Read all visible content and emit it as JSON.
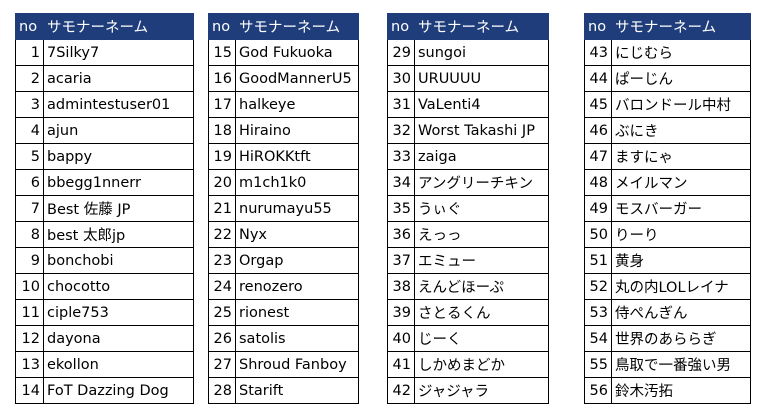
{
  "header": {
    "no": "no",
    "name": "サモナーネーム"
  },
  "colors": {
    "header_bg": "#1f3d7a",
    "header_text": "#ffffff",
    "border": "#000000"
  },
  "tables": [
    {
      "rows": [
        {
          "no": "1",
          "name": "7Silky7"
        },
        {
          "no": "2",
          "name": "acaria"
        },
        {
          "no": "3",
          "name": "admintestuser01"
        },
        {
          "no": "4",
          "name": "ajun"
        },
        {
          "no": "5",
          "name": "bappy"
        },
        {
          "no": "6",
          "name": "bbegg1nnerr"
        },
        {
          "no": "7",
          "name": "Best 佐藤 JP"
        },
        {
          "no": "8",
          "name": "best 太郎jp"
        },
        {
          "no": "9",
          "name": "bonchobi"
        },
        {
          "no": "10",
          "name": "chocotto"
        },
        {
          "no": "11",
          "name": "ciple753"
        },
        {
          "no": "12",
          "name": "dayona"
        },
        {
          "no": "13",
          "name": "ekollon"
        },
        {
          "no": "14",
          "name": "FoT Dazzing Dog"
        }
      ]
    },
    {
      "rows": [
        {
          "no": "15",
          "name": "God Fukuoka"
        },
        {
          "no": "16",
          "name": "GoodMannerU5"
        },
        {
          "no": "17",
          "name": "halkeye"
        },
        {
          "no": "18",
          "name": "Hiraino"
        },
        {
          "no": "19",
          "name": "HiROKKtft"
        },
        {
          "no": "20",
          "name": "m1ch1k0"
        },
        {
          "no": "21",
          "name": "nurumayu55"
        },
        {
          "no": "22",
          "name": "Nyx"
        },
        {
          "no": "23",
          "name": "Orgap"
        },
        {
          "no": "24",
          "name": "renozero"
        },
        {
          "no": "25",
          "name": "rionest"
        },
        {
          "no": "26",
          "name": "satolis"
        },
        {
          "no": "27",
          "name": "Shroud Fanboy"
        },
        {
          "no": "28",
          "name": "Starift"
        }
      ]
    },
    {
      "rows": [
        {
          "no": "29",
          "name": "sungoi"
        },
        {
          "no": "30",
          "name": "URUUUU"
        },
        {
          "no": "31",
          "name": "VaLenti4"
        },
        {
          "no": "32",
          "name": "Worst Takashi JP"
        },
        {
          "no": "33",
          "name": "zaiga"
        },
        {
          "no": "34",
          "name": "アングリーチキン"
        },
        {
          "no": "35",
          "name": "うぃぐ"
        },
        {
          "no": "36",
          "name": "えっっ"
        },
        {
          "no": "37",
          "name": "エミュー"
        },
        {
          "no": "38",
          "name": "えんどほーぷ"
        },
        {
          "no": "39",
          "name": "さとるくん"
        },
        {
          "no": "40",
          "name": "じーく"
        },
        {
          "no": "41",
          "name": "しかめまどか"
        },
        {
          "no": "42",
          "name": "ジャジャラ"
        }
      ]
    },
    {
      "rows": [
        {
          "no": "43",
          "name": "にじむら"
        },
        {
          "no": "44",
          "name": "ぱーじん"
        },
        {
          "no": "45",
          "name": "バロンドール中村"
        },
        {
          "no": "46",
          "name": "ぶにき"
        },
        {
          "no": "47",
          "name": "ますにゃ"
        },
        {
          "no": "48",
          "name": "メイルマン"
        },
        {
          "no": "49",
          "name": "モスバーガー"
        },
        {
          "no": "50",
          "name": "りーり"
        },
        {
          "no": "51",
          "name": "黄身"
        },
        {
          "no": "52",
          "name": "丸の内LOLレイナ"
        },
        {
          "no": "53",
          "name": "侍ぺんぎん"
        },
        {
          "no": "54",
          "name": "世界のあららぎ"
        },
        {
          "no": "55",
          "name": "鳥取で一番強い男"
        },
        {
          "no": "56",
          "name": "鈴木汚拓"
        }
      ]
    }
  ]
}
